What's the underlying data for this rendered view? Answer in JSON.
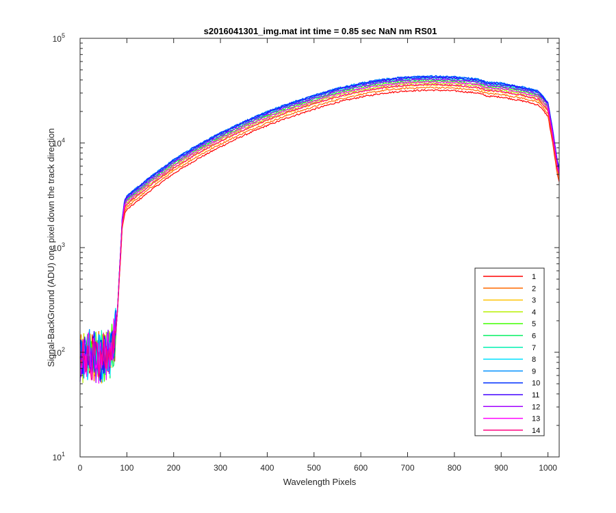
{
  "chart_data": {
    "type": "line",
    "title": "s2016041301_img.mat int time = 0.85 sec  NaN nm RS01",
    "xlabel": "Wavelength Pixels",
    "ylabel": "Signal-BackGround (ADU) one pixel down the track direction",
    "xlim": [
      0,
      1024
    ],
    "ylim": [
      10,
      100000
    ],
    "yscale": "log",
    "xticks": [
      "0",
      "100",
      "200",
      "300",
      "400",
      "500",
      "600",
      "700",
      "800",
      "900",
      "1000"
    ],
    "yticks": [
      {
        "base": "10",
        "exp": "1"
      },
      {
        "base": "10",
        "exp": "2"
      },
      {
        "base": "10",
        "exp": "3"
      },
      {
        "base": "10",
        "exp": "4"
      },
      {
        "base": "10",
        "exp": "5"
      }
    ],
    "legend_position": "bottom-right",
    "grid": false,
    "x": [
      0,
      20,
      40,
      60,
      70,
      75,
      80,
      85,
      90,
      95,
      100,
      150,
      200,
      250,
      300,
      350,
      400,
      450,
      500,
      550,
      600,
      650,
      700,
      750,
      800,
      850,
      870,
      900,
      950,
      980,
      1000,
      1010,
      1020,
      1024
    ],
    "reference_profile": [
      85,
      90,
      85,
      95,
      100,
      130,
      250,
      600,
      1500,
      2100,
      2300,
      3500,
      5100,
      7000,
      9200,
      11800,
      14700,
      17800,
      21000,
      24500,
      27500,
      30000,
      31500,
      32000,
      31500,
      30000,
      28000,
      27500,
      25000,
      23000,
      18000,
      10000,
      5000,
      4200
    ],
    "series": [
      {
        "name": "1",
        "scale": 1.0,
        "color": "#ff0000"
      },
      {
        "name": "2",
        "scale": 1.06,
        "color": "#ff6a00"
      },
      {
        "name": "3",
        "scale": 1.12,
        "color": "#ffc300"
      },
      {
        "name": "4",
        "scale": 1.17,
        "color": "#b8f000"
      },
      {
        "name": "5",
        "scale": 1.22,
        "color": "#40ff00"
      },
      {
        "name": "6",
        "scale": 1.26,
        "color": "#00f060"
      },
      {
        "name": "7",
        "scale": 1.3,
        "color": "#00f0b0"
      },
      {
        "name": "8",
        "scale": 1.33,
        "color": "#00e0ff"
      },
      {
        "name": "9",
        "scale": 1.36,
        "color": "#0090ff"
      },
      {
        "name": "10",
        "scale": 1.35,
        "color": "#0030ff"
      },
      {
        "name": "11",
        "scale": 1.32,
        "color": "#4000ff"
      },
      {
        "name": "12",
        "scale": 1.27,
        "color": "#a000ff"
      },
      {
        "name": "13",
        "scale": 1.2,
        "color": "#ff00ff"
      },
      {
        "name": "14",
        "scale": 1.13,
        "color": "#ff0080"
      }
    ]
  }
}
